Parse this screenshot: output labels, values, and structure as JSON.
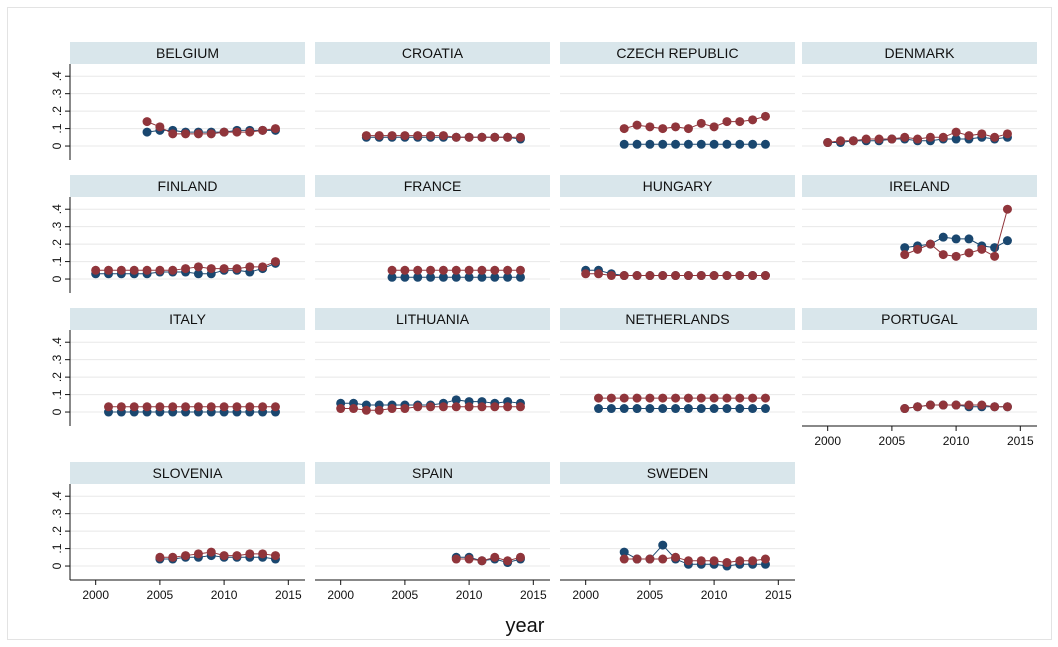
{
  "chart_data": {
    "type": "line",
    "xlabel": "year",
    "xlim": [
      1998,
      2016.3
    ],
    "ylim": [
      -0.08,
      0.47
    ],
    "xticks": [
      2000,
      2005,
      2010,
      2015
    ],
    "yticks": [
      0,
      {
        "value": 0.1,
        "label": ".1"
      },
      {
        "value": 0.2,
        "label": ".2"
      },
      {
        "value": 0.3,
        "label": ".3"
      },
      {
        "value": 0.4,
        "label": ".4"
      }
    ],
    "grid": true,
    "panels": [
      {
        "title": "BELGIUM",
        "x": [
          2004,
          2005,
          2006,
          2007,
          2008,
          2009,
          2010,
          2011,
          2012,
          2013,
          2014
        ],
        "series": [
          {
            "color": "#1a476f",
            "values": [
              0.08,
              0.09,
              0.09,
              0.08,
              0.08,
              0.08,
              0.08,
              0.09,
              0.09,
              0.09,
              0.09
            ]
          },
          {
            "color": "#90353b",
            "values": [
              0.14,
              0.11,
              0.07,
              0.07,
              0.07,
              0.07,
              0.08,
              0.08,
              0.08,
              0.09,
              0.1
            ]
          }
        ]
      },
      {
        "title": "CROATIA",
        "x": [
          2002,
          2003,
          2004,
          2005,
          2006,
          2007,
          2008,
          2009,
          2010,
          2011,
          2012,
          2013,
          2014
        ],
        "series": [
          {
            "color": "#1a476f",
            "values": [
              0.05,
              0.05,
              0.05,
              0.05,
              0.05,
              0.05,
              0.05,
              0.05,
              0.05,
              0.05,
              0.05,
              0.05,
              0.04
            ]
          },
          {
            "color": "#90353b",
            "values": [
              0.06,
              0.06,
              0.06,
              0.06,
              0.06,
              0.06,
              0.06,
              0.05,
              0.05,
              0.05,
              0.05,
              0.05,
              0.05
            ]
          }
        ]
      },
      {
        "title": "CZECH REPUBLIC",
        "x": [
          2003,
          2004,
          2005,
          2006,
          2007,
          2008,
          2009,
          2010,
          2011,
          2012,
          2013,
          2014
        ],
        "series": [
          {
            "color": "#1a476f",
            "values": [
              0.01,
              0.01,
              0.01,
              0.01,
              0.01,
              0.01,
              0.01,
              0.01,
              0.01,
              0.01,
              0.01,
              0.01
            ]
          },
          {
            "color": "#90353b",
            "values": [
              0.1,
              0.12,
              0.11,
              0.1,
              0.11,
              0.1,
              0.13,
              0.11,
              0.14,
              0.14,
              0.15,
              0.17
            ]
          }
        ]
      },
      {
        "title": "DENMARK",
        "x": [
          2000,
          2001,
          2002,
          2003,
          2004,
          2005,
          2006,
          2007,
          2008,
          2009,
          2010,
          2011,
          2012,
          2013,
          2014
        ],
        "series": [
          {
            "color": "#1a476f",
            "values": [
              0.02,
              0.02,
              0.03,
              0.03,
              0.03,
              0.04,
              0.04,
              0.03,
              0.03,
              0.04,
              0.04,
              0.04,
              0.05,
              0.04,
              0.05
            ]
          },
          {
            "color": "#90353b",
            "values": [
              0.02,
              0.03,
              0.03,
              0.04,
              0.04,
              0.04,
              0.05,
              0.04,
              0.05,
              0.05,
              0.08,
              0.06,
              0.07,
              0.05,
              0.07
            ]
          }
        ]
      },
      {
        "title": "FINLAND",
        "x": [
          2000,
          2001,
          2002,
          2003,
          2004,
          2005,
          2006,
          2007,
          2008,
          2009,
          2010,
          2011,
          2012,
          2013,
          2014
        ],
        "series": [
          {
            "color": "#1a476f",
            "values": [
              0.03,
              0.03,
              0.03,
              0.03,
              0.03,
              0.04,
              0.04,
              0.04,
              0.03,
              0.03,
              0.05,
              0.05,
              0.04,
              0.06,
              0.09
            ]
          },
          {
            "color": "#90353b",
            "values": [
              0.05,
              0.05,
              0.05,
              0.05,
              0.05,
              0.05,
              0.05,
              0.06,
              0.07,
              0.06,
              0.06,
              0.06,
              0.07,
              0.07,
              0.1
            ]
          }
        ]
      },
      {
        "title": "FRANCE",
        "x": [
          2004,
          2005,
          2006,
          2007,
          2008,
          2009,
          2010,
          2011,
          2012,
          2013,
          2014
        ],
        "series": [
          {
            "color": "#1a476f",
            "values": [
              0.01,
              0.01,
              0.01,
              0.01,
              0.01,
              0.01,
              0.01,
              0.01,
              0.01,
              0.01,
              0.01
            ]
          },
          {
            "color": "#90353b",
            "values": [
              0.05,
              0.05,
              0.05,
              0.05,
              0.05,
              0.05,
              0.05,
              0.05,
              0.05,
              0.05,
              0.05
            ]
          }
        ]
      },
      {
        "title": "HUNGARY",
        "x": [
          2000,
          2001,
          2002,
          2003,
          2004,
          2005,
          2006,
          2007,
          2008,
          2009,
          2010,
          2011,
          2012,
          2013,
          2014
        ],
        "series": [
          {
            "color": "#1a476f",
            "values": [
              0.05,
              0.05,
              0.03,
              0.02,
              0.02,
              0.02,
              0.02,
              0.02,
              0.02,
              0.02,
              0.02,
              0.02,
              0.02,
              0.02,
              0.02
            ]
          },
          {
            "color": "#90353b",
            "values": [
              0.03,
              0.03,
              0.02,
              0.02,
              0.02,
              0.02,
              0.02,
              0.02,
              0.02,
              0.02,
              0.02,
              0.02,
              0.02,
              0.02,
              0.02
            ]
          }
        ]
      },
      {
        "title": "IRELAND",
        "x": [
          2006,
          2007,
          2008,
          2009,
          2010,
          2011,
          2012,
          2013,
          2014
        ],
        "series": [
          {
            "color": "#1a476f",
            "values": [
              0.18,
              0.19,
              0.2,
              0.24,
              0.23,
              0.23,
              0.19,
              0.18,
              0.22
            ]
          },
          {
            "color": "#90353b",
            "values": [
              0.14,
              0.17,
              0.2,
              0.14,
              0.13,
              0.15,
              0.17,
              0.13,
              0.4
            ]
          }
        ]
      },
      {
        "title": "ITALY",
        "x": [
          2001,
          2002,
          2003,
          2004,
          2005,
          2006,
          2007,
          2008,
          2009,
          2010,
          2011,
          2012,
          2013,
          2014
        ],
        "series": [
          {
            "color": "#1a476f",
            "values": [
              0.0,
              0.0,
              0.0,
              0.0,
              0.0,
              0.0,
              0.0,
              0.0,
              0.0,
              0.0,
              0.0,
              0.0,
              0.0,
              0.0
            ]
          },
          {
            "color": "#90353b",
            "values": [
              0.03,
              0.03,
              0.03,
              0.03,
              0.03,
              0.03,
              0.03,
              0.03,
              0.03,
              0.03,
              0.03,
              0.03,
              0.03,
              0.03
            ]
          }
        ]
      },
      {
        "title": "LITHUANIA",
        "x": [
          2000,
          2001,
          2002,
          2003,
          2004,
          2005,
          2006,
          2007,
          2008,
          2009,
          2010,
          2011,
          2012,
          2013,
          2014
        ],
        "series": [
          {
            "color": "#1a476f",
            "values": [
              0.05,
              0.05,
              0.04,
              0.04,
              0.04,
              0.04,
              0.04,
              0.04,
              0.05,
              0.07,
              0.06,
              0.06,
              0.05,
              0.06,
              0.05
            ]
          },
          {
            "color": "#90353b",
            "values": [
              0.02,
              0.02,
              0.01,
              0.01,
              0.02,
              0.02,
              0.03,
              0.03,
              0.03,
              0.03,
              0.03,
              0.03,
              0.03,
              0.03,
              0.03
            ]
          }
        ]
      },
      {
        "title": "NETHERLANDS",
        "x": [
          2001,
          2002,
          2003,
          2004,
          2005,
          2006,
          2007,
          2008,
          2009,
          2010,
          2011,
          2012,
          2013,
          2014
        ],
        "series": [
          {
            "color": "#1a476f",
            "values": [
              0.02,
              0.02,
              0.02,
              0.02,
              0.02,
              0.02,
              0.02,
              0.02,
              0.02,
              0.02,
              0.02,
              0.02,
              0.02,
              0.02
            ]
          },
          {
            "color": "#90353b",
            "values": [
              0.08,
              0.08,
              0.08,
              0.08,
              0.08,
              0.08,
              0.08,
              0.08,
              0.08,
              0.08,
              0.08,
              0.08,
              0.08,
              0.08
            ]
          }
        ]
      },
      {
        "title": "PORTUGAL",
        "x": [
          2006,
          2007,
          2008,
          2009,
          2010,
          2011,
          2012,
          2013,
          2014
        ],
        "series": [
          {
            "color": "#1a476f",
            "values": [
              0.02,
              0.03,
              0.04,
              0.04,
              0.04,
              0.03,
              0.03,
              0.03,
              0.03
            ]
          },
          {
            "color": "#90353b",
            "values": [
              0.02,
              0.03,
              0.04,
              0.04,
              0.04,
              0.04,
              0.04,
              0.03,
              0.03
            ]
          }
        ]
      },
      {
        "title": "SLOVENIA",
        "x": [
          2005,
          2006,
          2007,
          2008,
          2009,
          2010,
          2011,
          2012,
          2013,
          2014
        ],
        "series": [
          {
            "color": "#1a476f",
            "values": [
              0.04,
              0.04,
              0.05,
              0.05,
              0.06,
              0.05,
              0.05,
              0.05,
              0.05,
              0.04
            ]
          },
          {
            "color": "#90353b",
            "values": [
              0.05,
              0.05,
              0.06,
              0.07,
              0.08,
              0.06,
              0.06,
              0.07,
              0.07,
              0.06
            ]
          }
        ]
      },
      {
        "title": "SPAIN",
        "x": [
          2009,
          2010,
          2011,
          2012,
          2013,
          2014
        ],
        "series": [
          {
            "color": "#1a476f",
            "values": [
              0.05,
              0.05,
              0.03,
              0.04,
              0.02,
              0.04
            ]
          },
          {
            "color": "#90353b",
            "values": [
              0.04,
              0.04,
              0.03,
              0.05,
              0.03,
              0.05
            ]
          }
        ]
      },
      {
        "title": "SWEDEN",
        "x": [
          2003,
          2004,
          2005,
          2006,
          2007,
          2008,
          2009,
          2010,
          2011,
          2012,
          2013,
          2014
        ],
        "series": [
          {
            "color": "#1a476f",
            "values": [
              0.08,
              0.04,
              0.04,
              0.12,
              0.04,
              0.01,
              0.01,
              0.01,
              0.0,
              0.01,
              0.01,
              0.01
            ]
          },
          {
            "color": "#90353b",
            "values": [
              0.04,
              0.04,
              0.04,
              0.04,
              0.05,
              0.03,
              0.03,
              0.03,
              0.02,
              0.03,
              0.03,
              0.04
            ]
          }
        ]
      }
    ]
  }
}
